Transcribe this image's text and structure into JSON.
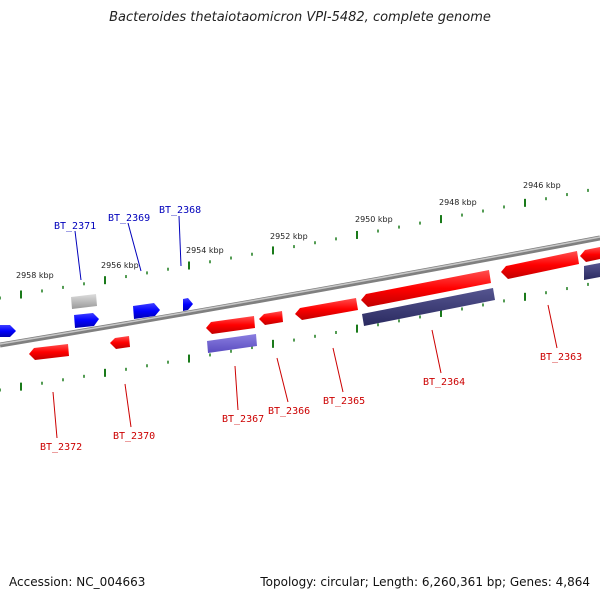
{
  "title": "Bacteroides thetaiotaomicron VPI-5482, complete genome",
  "footer": {
    "accession": "Accession: NC_004663",
    "summary": "Topology: circular; Length: 6,260,361 bp; Genes: 4,864"
  },
  "colors": {
    "backbone": "#8a8a8a",
    "tick": "#1a7a1a",
    "forward_gene": "#0000ee",
    "forward_label": "#0000bb",
    "reverse_gene": "#ee0000",
    "reverse_label": "#cc0000",
    "reverse_cds": "#6a5acd",
    "dark_cds": "#3a3a7a",
    "pseudo": "#b5b5b5"
  },
  "kbp_ticks": [
    "2958 kbp",
    "2956 kbp",
    "2954 kbp",
    "2952 kbp",
    "2950 kbp",
    "2948 kbp",
    "2946 kbp"
  ],
  "forward_labels": [
    "BT_2371",
    "BT_2369",
    "BT_2368"
  ],
  "reverse_labels": [
    "BT_2372",
    "BT_2370",
    "BT_2367",
    "BT_2366",
    "BT_2365",
    "BT_2364",
    "BT_2363"
  ]
}
